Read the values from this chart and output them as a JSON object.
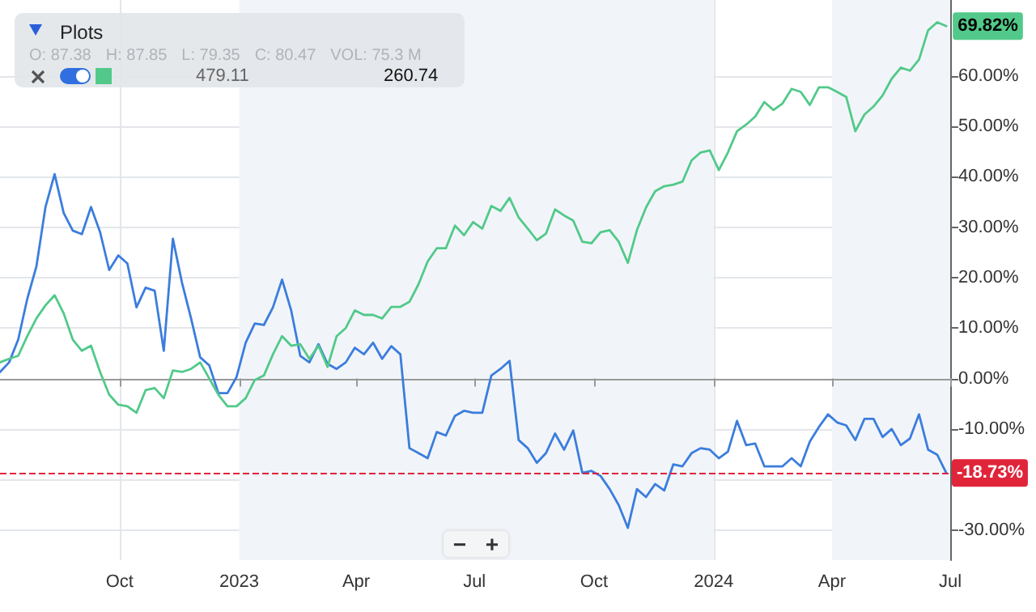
{
  "chart_data": {
    "type": "line",
    "x": [
      "2022-07-01",
      "2022-07-08",
      "2022-07-15",
      "2022-07-22",
      "2022-07-29",
      "2022-08-05",
      "2022-08-12",
      "2022-08-19",
      "2022-08-26",
      "2022-09-02",
      "2022-09-09",
      "2022-09-16",
      "2022-09-23",
      "2022-09-30",
      "2022-10-07",
      "2022-10-14",
      "2022-10-21",
      "2022-10-28",
      "2022-11-04",
      "2022-11-11",
      "2022-11-18",
      "2022-11-25",
      "2022-12-02",
      "2022-12-09",
      "2022-12-16",
      "2022-12-23",
      "2022-12-30",
      "2023-01-06",
      "2023-01-13",
      "2023-01-20",
      "2023-01-27",
      "2023-02-03",
      "2023-02-10",
      "2023-02-17",
      "2023-02-24",
      "2023-03-03",
      "2023-03-10",
      "2023-03-17",
      "2023-03-24",
      "2023-03-31",
      "2023-04-07",
      "2023-04-14",
      "2023-04-21",
      "2023-04-28",
      "2023-05-05",
      "2023-05-12",
      "2023-05-19",
      "2023-05-26",
      "2023-06-02",
      "2023-06-09",
      "2023-06-16",
      "2023-06-23",
      "2023-06-30",
      "2023-07-07",
      "2023-07-14",
      "2023-07-21",
      "2023-07-28",
      "2023-08-04",
      "2023-08-11",
      "2023-08-18",
      "2023-08-25",
      "2023-09-01",
      "2023-09-08",
      "2023-09-15",
      "2023-09-22",
      "2023-09-29",
      "2023-10-06",
      "2023-10-13",
      "2023-10-20",
      "2023-10-27",
      "2023-11-03",
      "2023-11-10",
      "2023-11-17",
      "2023-11-24",
      "2023-12-01",
      "2023-12-08",
      "2023-12-15",
      "2023-12-22",
      "2023-12-29",
      "2024-01-05",
      "2024-01-12",
      "2024-01-19",
      "2024-01-26",
      "2024-02-02",
      "2024-02-09",
      "2024-02-16",
      "2024-02-23",
      "2024-03-01",
      "2024-03-08",
      "2024-03-15",
      "2024-03-22",
      "2024-03-29",
      "2024-04-05",
      "2024-04-12",
      "2024-04-19",
      "2024-04-26",
      "2024-05-03",
      "2024-05-10",
      "2024-05-17",
      "2024-05-24",
      "2024-05-31",
      "2024-06-07",
      "2024-06-14",
      "2024-06-21",
      "2024-06-28"
    ],
    "series": [
      {
        "color": "#3b7ddd",
        "values": [
          1.3,
          3.2,
          7.7,
          15.8,
          22.2,
          34,
          40.5,
          32.8,
          29.3,
          28.6,
          34,
          29,
          21.5,
          24.4,
          22.8,
          14.1,
          18,
          17.4,
          5.5,
          27.7,
          19,
          11.9,
          4.2,
          2.6,
          -2.9,
          -2.9,
          0.3,
          7.1,
          10.9,
          10.6,
          14.1,
          19.6,
          13.5,
          4.5,
          3.2,
          6.8,
          2.9,
          1.9,
          3.2,
          6.1,
          4.8,
          7.1,
          3.9,
          6.4,
          4.8,
          -13.8,
          -14.8,
          -15.8,
          -10.6,
          -11.3,
          -7.4,
          -6.4,
          -6.8,
          -6.8,
          0.6,
          1.9,
          3.5,
          -12.2,
          -13.8,
          -16.7,
          -14.8,
          -10.9,
          -14.1,
          -10.3,
          -18.7,
          -18.3,
          -19.3,
          -21.9,
          -25.1,
          -29.6,
          -21.9,
          -23.5,
          -20.9,
          -22.2,
          -17,
          -17.4,
          -14.8,
          -13.8,
          -14.1,
          -15.8,
          -14.5,
          -8.4,
          -13.2,
          -12.9,
          -17.4,
          -17.4,
          -17.4,
          -15.8,
          -17.4,
          -12.5,
          -9.6,
          -7.1,
          -8.7,
          -9.3,
          -12.2,
          -8,
          -8,
          -11.6,
          -10,
          -13.2,
          -11.9,
          -7.1,
          -14.1,
          -15.1,
          -18.73
        ]
      },
      {
        "color": "#52c98a",
        "values": [
          3.2,
          3.9,
          4.5,
          8.4,
          11.9,
          14.5,
          16.5,
          12.9,
          7.7,
          5.5,
          6.5,
          1.3,
          -3.2,
          -5.2,
          -5.5,
          -6.8,
          -2.3,
          -1.9,
          -3.9,
          1.6,
          1.3,
          1.9,
          3.2,
          0,
          -3.2,
          -5.5,
          -5.5,
          -3.9,
          -0.3,
          0.6,
          4.8,
          8.4,
          6.5,
          6.8,
          3.9,
          6.5,
          2.3,
          8.4,
          10,
          13.5,
          12.6,
          12.6,
          11.9,
          14.2,
          14.2,
          15.2,
          18.7,
          23.2,
          25.8,
          25.8,
          30.3,
          28.4,
          31,
          29.7,
          34.2,
          33.2,
          35.8,
          31.9,
          29.7,
          27.4,
          28.7,
          33.5,
          32.3,
          31.3,
          27.1,
          26.8,
          29,
          29.4,
          27.1,
          22.9,
          29.4,
          33.9,
          37.1,
          38.1,
          38.4,
          39,
          43.2,
          44.8,
          45.2,
          41.3,
          44.8,
          49,
          50.3,
          51.9,
          54.8,
          53.2,
          54.5,
          57.4,
          56.8,
          54.2,
          57.7,
          57.7,
          56.8,
          55.8,
          49,
          52.3,
          53.9,
          56.1,
          59.4,
          61.6,
          61,
          63.2,
          69,
          70.6,
          69.82
        ]
      }
    ],
    "xlim": [
      "2022-07-01",
      "2024-07-01"
    ],
    "xticks": [
      {
        "value": "2022-10-01",
        "label": "Oct"
      },
      {
        "value": "2023-01-01",
        "label": "2023"
      },
      {
        "value": "2023-04-01",
        "label": "Apr"
      },
      {
        "value": "2023-07-01",
        "label": "Jul"
      },
      {
        "value": "2023-10-01",
        "label": "Oct"
      },
      {
        "value": "2024-01-01",
        "label": "2024"
      },
      {
        "value": "2024-04-01",
        "label": "Apr"
      },
      {
        "value": "2024-07-01",
        "label": "Jul"
      }
    ],
    "ylim": [
      -36,
      75
    ],
    "yticks": [
      {
        "value": -30,
        "label": "-30.00%"
      },
      {
        "value": -20,
        "label": null
      },
      {
        "value": -10,
        "label": "-10.00%"
      },
      {
        "value": 0,
        "label": "0.00%"
      },
      {
        "value": 10,
        "label": "10.00%"
      },
      {
        "value": 20,
        "label": "20.00%"
      },
      {
        "value": 30,
        "label": "30.00%"
      },
      {
        "value": 40,
        "label": "40.00%"
      },
      {
        "value": 50,
        "label": "50.00%"
      },
      {
        "value": 60,
        "label": "60.00%"
      }
    ],
    "ref_lines": [
      {
        "axis": "y",
        "value": -18.73,
        "label": "-18.73%",
        "color": "#e0243a",
        "line_style": "dashed"
      }
    ],
    "bands": [
      {
        "axis": "x",
        "from": "2023-01-01",
        "to": "2024-01-01",
        "color": "#f1f5f9"
      },
      {
        "axis": "x",
        "from": "2024-04-01",
        "to": "2024-07-01",
        "color": "#f1f5f9"
      }
    ],
    "annotations": [
      "Plots",
      "O: 87.38",
      "H: 87.85",
      "L: 79.35",
      "C: 80.47",
      "VOL: 75.3 M",
      "479.11",
      "260.74",
      "−",
      "+",
      {
        "text": "69.82%",
        "x": "2024-06-28",
        "y": 69.82
      }
    ],
    "grid": true,
    "marker": "none",
    "line_style": "solid"
  }
}
